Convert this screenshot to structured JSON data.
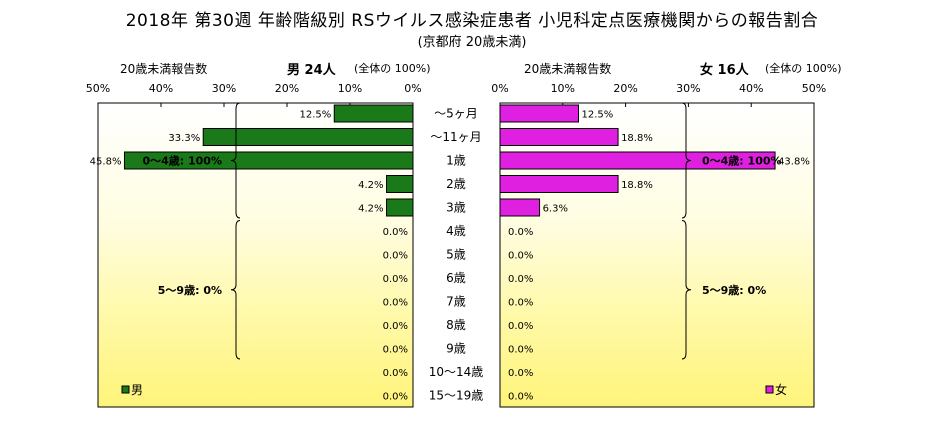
{
  "title": "2018年 第30週 年齢階級別 RSウイルス感染症患者 小児科定点医療機関からの報告割合",
  "subtitle": "(京都府 20歳未満)",
  "left_header": {
    "count_label": "20歳未満報告数",
    "sex_count": "男  24人",
    "total": "(全体の  100%)"
  },
  "right_header": {
    "count_label": "20歳未満報告数",
    "sex_count": "女  16人",
    "total": "(全体の  100%)"
  },
  "colors": {
    "male": "#1a7a1a",
    "female": "#e020e0",
    "bar_border": "#000000",
    "band": "#fffcb0"
  },
  "chart_data": {
    "type": "bar",
    "orientation": "horizontal-pyramid",
    "categories": [
      "〜5ヶ月",
      "〜11ヶ月",
      "1歳",
      "2歳",
      "3歳",
      "4歳",
      "5歳",
      "6歳",
      "7歳",
      "8歳",
      "9歳",
      "10〜14歳",
      "15〜19歳"
    ],
    "series": [
      {
        "name": "男",
        "side": "left",
        "values": [
          12.5,
          33.3,
          45.8,
          4.2,
          4.2,
          0,
          0,
          0,
          0,
          0,
          0,
          0,
          0
        ],
        "labels": [
          "12.5%",
          "33.3%",
          "45.8%",
          "4.2%",
          "4.2%",
          "0.0%",
          "0.0%",
          "0.0%",
          "0.0%",
          "0.0%",
          "0.0%",
          "0.0%",
          "0.0%"
        ]
      },
      {
        "name": "女",
        "side": "right",
        "values": [
          12.5,
          18.8,
          43.8,
          18.8,
          6.3,
          0,
          0,
          0,
          0,
          0,
          0,
          0,
          0
        ],
        "labels": [
          "12.5%",
          "18.8%",
          "43.8%",
          "18.8%",
          "6.3%",
          "0.0%",
          "0.0%",
          "0.0%",
          "0.0%",
          "0.0%",
          "0.0%",
          "0.0%",
          "0.0%"
        ]
      }
    ],
    "xlim": [
      0,
      50
    ],
    "x_ticks": [
      "0%",
      "10%",
      "20%",
      "30%",
      "40%",
      "50%"
    ],
    "left_x_ticks": [
      "50%",
      "40%",
      "30%",
      "20%",
      "10%",
      "0%"
    ],
    "annotations": {
      "left": [
        {
          "text": "0〜4歳: 100%",
          "from": 0,
          "to": 4
        },
        {
          "text": "5〜9歳: 0%",
          "from": 5,
          "to": 10
        }
      ],
      "right": [
        {
          "text": "0〜4歳: 100%",
          "from": 0,
          "to": 4
        },
        {
          "text": "5〜9歳: 0%",
          "from": 5,
          "to": 10
        }
      ]
    },
    "legend": {
      "left": "男",
      "right": "女",
      "placement": "bottom"
    }
  }
}
